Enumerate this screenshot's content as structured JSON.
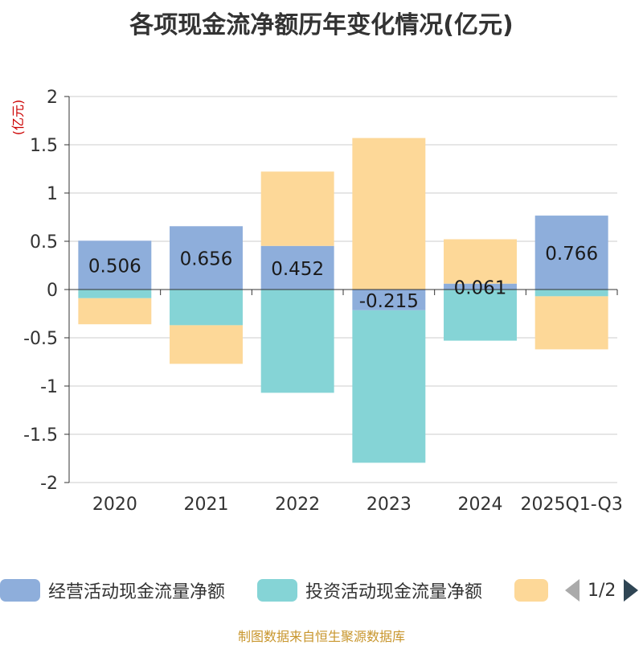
{
  "title": "各项现金流净额历年变化情况(亿元)",
  "footer": "制图数据来自恒生聚源数据库",
  "legend": {
    "items": [
      {
        "label": "经营活动现金流量净额",
        "color": "#8eaedb"
      },
      {
        "label": "投资活动现金流量净额",
        "color": "#85d4d6"
      },
      {
        "label": "",
        "color": "#fdd898"
      }
    ],
    "page": "1/2"
  },
  "chart_data": {
    "type": "bar",
    "stacked": true,
    "categories": [
      "2020",
      "2021",
      "2022",
      "2023",
      "2024",
      "2025Q1-Q3"
    ],
    "ylabel": "(亿元)",
    "ylim": [
      -2,
      2
    ],
    "yticks": [
      "2",
      "1.5",
      "1",
      "0.5",
      "0",
      "-0.5",
      "-1",
      "-1.5",
      "-2"
    ],
    "ytick_values": [
      2,
      1.5,
      1,
      0.5,
      0,
      -0.5,
      -1,
      -1.5,
      -2
    ],
    "grid": true,
    "legend_position": "bottom",
    "series": [
      {
        "name": "经营活动现金流量净额",
        "color": "#8eaedb",
        "values": [
          0.506,
          0.656,
          0.452,
          -0.215,
          0.061,
          0.766
        ],
        "labels": [
          "0.506",
          "0.656",
          "0.452",
          "-0.215",
          "0.061",
          "0.766"
        ]
      },
      {
        "name": "投资活动现金流量净额",
        "color": "#85d4d6",
        "values": [
          -0.09,
          -0.37,
          -1.07,
          -1.58,
          -0.53,
          -0.07
        ]
      },
      {
        "name": "",
        "color": "#fdd898",
        "values": [
          -0.27,
          -0.4,
          0.77,
          1.57,
          0.46,
          -0.55
        ]
      }
    ]
  }
}
